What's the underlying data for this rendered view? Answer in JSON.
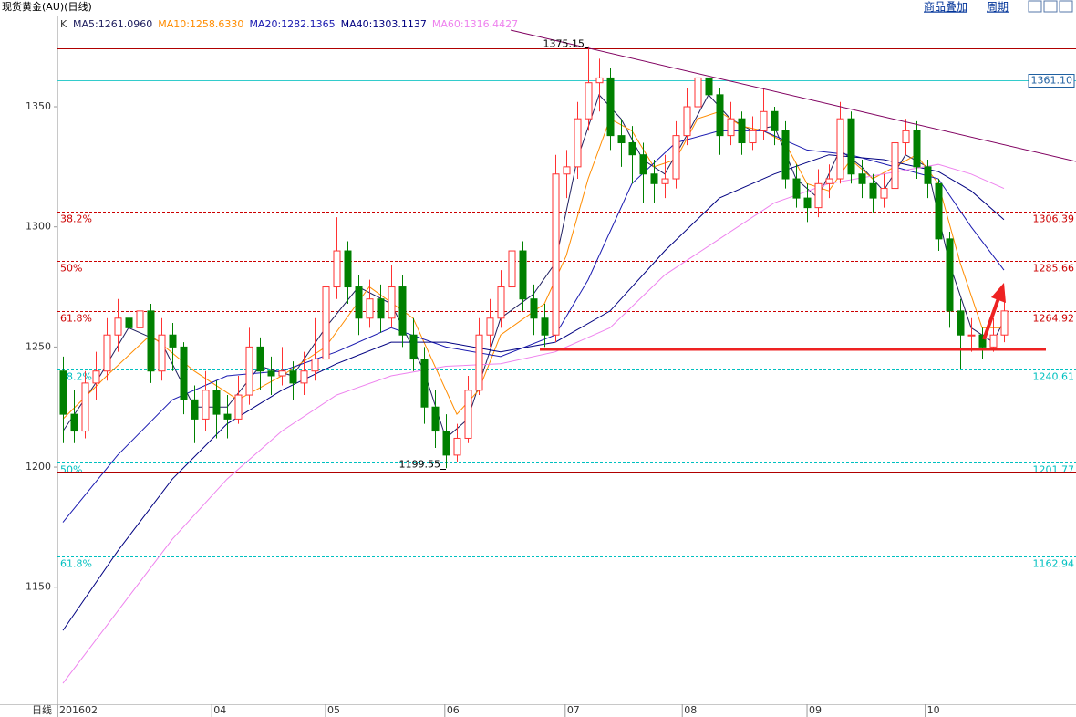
{
  "header": {
    "title": "现货黄金(AU)(日线)",
    "menu": [
      "商品叠加",
      "周期"
    ]
  },
  "chart_data": {
    "type": "candlestick",
    "indicator_label": "K",
    "period_label": "日线",
    "up_color": "#ff3232",
    "down_color": "#008000",
    "extreme_color": "#b00000",
    "candles": [
      [
        1240,
        1246,
        1210,
        1222
      ],
      [
        1222,
        1232,
        1210,
        1215
      ],
      [
        1215,
        1240,
        1212,
        1235
      ],
      [
        1235,
        1248,
        1228,
        1240
      ],
      [
        1240,
        1262,
        1236,
        1255
      ],
      [
        1255,
        1270,
        1248,
        1262
      ],
      [
        1262,
        1282,
        1250,
        1258
      ],
      [
        1258,
        1272,
        1245,
        1265
      ],
      [
        1265,
        1268,
        1235,
        1240
      ],
      [
        1240,
        1262,
        1236,
        1255
      ],
      [
        1255,
        1260,
        1240,
        1250
      ],
      [
        1250,
        1252,
        1222,
        1228
      ],
      [
        1228,
        1234,
        1210,
        1220
      ],
      [
        1220,
        1240,
        1215,
        1232
      ],
      [
        1232,
        1236,
        1212,
        1222
      ],
      [
        1222,
        1230,
        1212,
        1220
      ],
      [
        1220,
        1238,
        1218,
        1230
      ],
      [
        1230,
        1258,
        1226,
        1250
      ],
      [
        1250,
        1254,
        1232,
        1240
      ],
      [
        1240,
        1246,
        1230,
        1238
      ],
      [
        1238,
        1250,
        1234,
        1240
      ],
      [
        1240,
        1244,
        1228,
        1235
      ],
      [
        1235,
        1248,
        1230,
        1240
      ],
      [
        1240,
        1262,
        1236,
        1245
      ],
      [
        1245,
        1285,
        1243,
        1275
      ],
      [
        1275,
        1304,
        1270,
        1290
      ],
      [
        1290,
        1294,
        1268,
        1275
      ],
      [
        1275,
        1280,
        1255,
        1262
      ],
      [
        1262,
        1278,
        1258,
        1270
      ],
      [
        1270,
        1276,
        1256,
        1262
      ],
      [
        1262,
        1284,
        1258,
        1275
      ],
      [
        1275,
        1280,
        1250,
        1255
      ],
      [
        1255,
        1262,
        1240,
        1245
      ],
      [
        1245,
        1250,
        1218,
        1225
      ],
      [
        1225,
        1232,
        1208,
        1215
      ],
      [
        1215,
        1222,
        1199.55,
        1205
      ],
      [
        1205,
        1218,
        1202,
        1212
      ],
      [
        1212,
        1238,
        1210,
        1232
      ],
      [
        1232,
        1262,
        1230,
        1255
      ],
      [
        1255,
        1270,
        1250,
        1262
      ],
      [
        1262,
        1282,
        1258,
        1275
      ],
      [
        1275,
        1296,
        1270,
        1290
      ],
      [
        1290,
        1294,
        1265,
        1270
      ],
      [
        1270,
        1276,
        1255,
        1262
      ],
      [
        1262,
        1268,
        1250,
        1255
      ],
      [
        1255,
        1330,
        1252,
        1322
      ],
      [
        1322,
        1332,
        1312,
        1325
      ],
      [
        1325,
        1352,
        1320,
        1345
      ],
      [
        1345,
        1375.15,
        1340,
        1360
      ],
      [
        1360,
        1370,
        1348,
        1362
      ],
      [
        1362,
        1366,
        1332,
        1338
      ],
      [
        1338,
        1345,
        1325,
        1335
      ],
      [
        1335,
        1342,
        1318,
        1330
      ],
      [
        1330,
        1335,
        1310,
        1322
      ],
      [
        1322,
        1328,
        1310,
        1318
      ],
      [
        1318,
        1330,
        1312,
        1320
      ],
      [
        1320,
        1344,
        1316,
        1338
      ],
      [
        1338,
        1358,
        1334,
        1350
      ],
      [
        1350,
        1368,
        1345,
        1362
      ],
      [
        1362,
        1366,
        1348,
        1355
      ],
      [
        1355,
        1358,
        1330,
        1338
      ],
      [
        1338,
        1352,
        1334,
        1345
      ],
      [
        1345,
        1348,
        1330,
        1335
      ],
      [
        1335,
        1346,
        1332,
        1340
      ],
      [
        1340,
        1358,
        1336,
        1348
      ],
      [
        1348,
        1350,
        1334,
        1340
      ],
      [
        1340,
        1344,
        1316,
        1320
      ],
      [
        1320,
        1326,
        1308,
        1312
      ],
      [
        1312,
        1318,
        1302,
        1308
      ],
      [
        1308,
        1324,
        1304,
        1318
      ],
      [
        1318,
        1326,
        1312,
        1320
      ],
      [
        1320,
        1352,
        1318,
        1345
      ],
      [
        1345,
        1348,
        1318,
        1322
      ],
      [
        1322,
        1328,
        1312,
        1318
      ],
      [
        1318,
        1322,
        1306,
        1312
      ],
      [
        1312,
        1322,
        1308,
        1316
      ],
      [
        1316,
        1342,
        1314,
        1335
      ],
      [
        1335,
        1345,
        1330,
        1340
      ],
      [
        1340,
        1344,
        1320,
        1325
      ],
      [
        1325,
        1328,
        1312,
        1318
      ],
      [
        1318,
        1320,
        1290,
        1295
      ],
      [
        1295,
        1298,
        1258,
        1265
      ],
      [
        1265,
        1270,
        1241,
        1255
      ],
      [
        1255,
        1262,
        1248,
        1255
      ],
      [
        1255,
        1258,
        1245,
        1250
      ],
      [
        1250,
        1262,
        1248,
        1255
      ],
      [
        1255,
        1270,
        1252,
        1265
      ]
    ],
    "series": [
      {
        "name": "MA5:1261.0960",
        "color": "#202060",
        "x": [
          0,
          3,
          6,
          9,
          12,
          15,
          18,
          21,
          24,
          27,
          30,
          33,
          35,
          37,
          40,
          43,
          45,
          47,
          49,
          51,
          53,
          55,
          57,
          59,
          61,
          63,
          65,
          67,
          69,
          71,
          73,
          75,
          77,
          79,
          81,
          83,
          85,
          86
        ],
        "values": [
          1215,
          1235,
          1258,
          1252,
          1225,
          1225,
          1242,
          1238,
          1258,
          1275,
          1268,
          1240,
          1212,
          1220,
          1262,
          1272,
          1285,
          1328,
          1355,
          1345,
          1328,
          1322,
          1338,
          1355,
          1345,
          1340,
          1342,
          1320,
          1312,
          1332,
          1325,
          1315,
          1330,
          1325,
          1285,
          1258,
          1252,
          1261
        ]
      },
      {
        "name": "MA10:1258.6330",
        "color": "#ff8c00",
        "x": [
          0,
          4,
          8,
          12,
          16,
          20,
          24,
          28,
          32,
          36,
          38,
          40,
          44,
          46,
          48,
          50,
          52,
          54,
          56,
          58,
          60,
          62,
          64,
          66,
          68,
          70,
          72,
          74,
          76,
          78,
          80,
          82,
          84,
          86
        ],
        "values": [
          1220,
          1238,
          1255,
          1240,
          1228,
          1238,
          1250,
          1275,
          1262,
          1222,
          1232,
          1255,
          1268,
          1288,
          1320,
          1345,
          1340,
          1325,
          1328,
          1345,
          1348,
          1342,
          1340,
          1335,
          1318,
          1315,
          1328,
          1320,
          1325,
          1330,
          1318,
          1285,
          1258,
          1258
        ]
      },
      {
        "name": "MA20:1282.1365",
        "color": "#1a1ab0",
        "x": [
          0,
          5,
          10,
          15,
          20,
          25,
          30,
          35,
          40,
          45,
          48,
          52,
          56,
          60,
          64,
          68,
          72,
          76,
          80,
          83,
          86
        ],
        "values": [
          1177,
          1205,
          1228,
          1238,
          1240,
          1248,
          1258,
          1250,
          1246,
          1255,
          1278,
          1318,
          1335,
          1340,
          1340,
          1332,
          1330,
          1325,
          1320,
          1300,
          1282
        ]
      },
      {
        "name": "MA40:1303.1137",
        "color": "#000080",
        "x": [
          0,
          5,
          10,
          15,
          20,
          25,
          30,
          35,
          40,
          45,
          50,
          55,
          60,
          65,
          70,
          75,
          80,
          83,
          86
        ],
        "values": [
          1132,
          1165,
          1195,
          1218,
          1232,
          1243,
          1252,
          1252,
          1248,
          1252,
          1265,
          1290,
          1312,
          1322,
          1330,
          1328,
          1323,
          1315,
          1303
        ]
      },
      {
        "name": "MA60:1316.4427",
        "color": "#ee82ee",
        "x": [
          0,
          5,
          10,
          15,
          20,
          25,
          30,
          35,
          40,
          45,
          50,
          55,
          60,
          65,
          70,
          75,
          80,
          83,
          86
        ],
        "values": [
          1110,
          1140,
          1170,
          1195,
          1215,
          1230,
          1238,
          1242,
          1243,
          1248,
          1258,
          1280,
          1295,
          1310,
          1318,
          1322,
          1326,
          1322,
          1316
        ]
      }
    ],
    "ylim": [
      1101.3,
      1387.6
    ],
    "yticks": [
      1150,
      1200,
      1250,
      1300,
      1350
    ],
    "xlim": [
      -0.5,
      92.58
    ],
    "xticks": [
      {
        "value": -0.5,
        "label": "201602"
      },
      {
        "value": 13.6,
        "label": "04"
      },
      {
        "value": 24,
        "label": "05"
      },
      {
        "value": 34.9,
        "label": "06"
      },
      {
        "value": 45.9,
        "label": "07"
      },
      {
        "value": 56.6,
        "label": "08"
      },
      {
        "value": 68,
        "label": "09"
      },
      {
        "value": 78.8,
        "label": "10"
      }
    ],
    "levels": [
      {
        "value": {
          "value": 1361.1,
          "label": "1361.10"
        },
        "color": "#33cccc",
        "dash": false,
        "boxed": true
      },
      {
        "value": 1306.39,
        "left_label": "38.2%",
        "color": "#cc0000",
        "dash": true
      },
      {
        "value": 1285.66,
        "left_label": "50%",
        "color": "#cc0000",
        "dash": true
      },
      {
        "value": 1264.92,
        "left_label": "61.8%",
        "color": "#cc0000",
        "dash": true
      },
      {
        "value": 1240.61,
        "left_label": "38.2%",
        "color": "#00c0c0",
        "dash": true
      },
      {
        "value": 1201.77,
        "left_label": "50%",
        "color": "#00c0c0",
        "dash": true
      },
      {
        "value": 1162.94,
        "left_label": "61.8%",
        "color": "#00c0c0",
        "dash": true
      }
    ]
  }
}
